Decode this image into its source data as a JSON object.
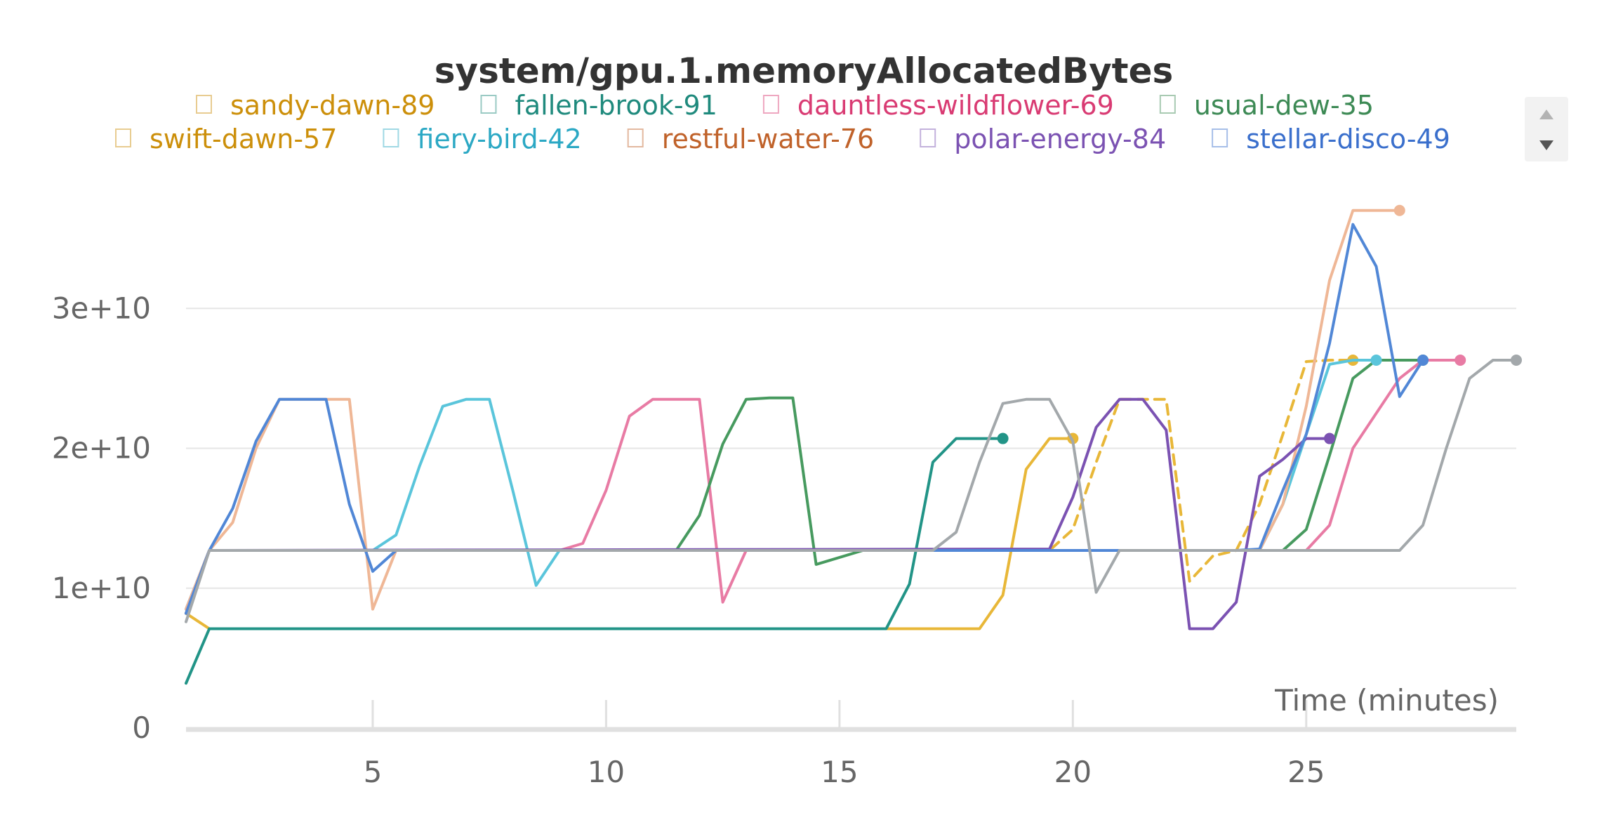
{
  "chart_data": {
    "type": "line",
    "title": "system/gpu.1.memoryAllocatedBytes",
    "xlabel": "Time (minutes)",
    "ylabel": "",
    "xlim": [
      1,
      29.5
    ],
    "ylim": [
      0,
      40000000000.0
    ],
    "x_ticks": [
      5,
      10,
      15,
      20,
      25
    ],
    "x_tick_labels": [
      "5",
      "10",
      "15",
      "20",
      "25"
    ],
    "y_ticks": [
      0,
      10000000000.0,
      20000000000.0,
      30000000000.0
    ],
    "y_tick_labels": [
      "0",
      "1e+10",
      "2e+10",
      "3e+10"
    ],
    "grid": true,
    "legend_position": "top",
    "series": [
      {
        "name": "sandy-dawn-89",
        "color": "#e8b738",
        "dashed": false,
        "x": [
          1,
          1.5,
          16,
          17,
          18,
          18.5,
          19,
          19.5,
          20
        ],
        "y": [
          8200000000.0,
          7100000000.0,
          7100000000.0,
          7100000000.0,
          7100000000.0,
          9500000000.0,
          18500000000.0,
          20700000000.0,
          20700000000.0
        ]
      },
      {
        "name": "fallen-brook-91",
        "color": "#229487",
        "dashed": false,
        "x": [
          1,
          1.5,
          16,
          16.5,
          17,
          17.5,
          18,
          18.5
        ],
        "y": [
          3200000000.0,
          7100000000.0,
          7100000000.0,
          10300000000.0,
          19000000000.0,
          20700000000.0,
          20700000000.0,
          20700000000.0
        ]
      },
      {
        "name": "dauntless-wildflower-69",
        "color": "#e87ba4",
        "dashed": false,
        "x": [
          1,
          1.5,
          9,
          9.5,
          10,
          10.5,
          11,
          11.5,
          12,
          12.5,
          13,
          25,
          25.5,
          26,
          26.5,
          27,
          27.5,
          28,
          28.3
        ],
        "y": [
          8500000000.0,
          12700000000.0,
          12700000000.0,
          13200000000.0,
          17000000000.0,
          22300000000.0,
          23500000000.0,
          23500000000.0,
          23500000000.0,
          9000000000.0,
          12700000000.0,
          12700000000.0,
          14500000000.0,
          20000000000.0,
          22500000000.0,
          25000000000.0,
          26300000000.0,
          26300000000.0,
          26300000000.0
        ]
      },
      {
        "name": "usual-dew-35",
        "color": "#479a5f",
        "dashed": false,
        "x": [
          1,
          1.5,
          11.5,
          12,
          12.5,
          13,
          13.5,
          14,
          14.5,
          15.5,
          24.5,
          25,
          25.5,
          26,
          26.5,
          27,
          27.5
        ],
        "y": [
          8200000000.0,
          12700000000.0,
          12700000000.0,
          15200000000.0,
          20300000000.0,
          23500000000.0,
          23600000000.0,
          23600000000.0,
          11700000000.0,
          12700000000.0,
          12700000000.0,
          14200000000.0,
          19500000000.0,
          25000000000.0,
          26300000000.0,
          26300000000.0,
          26300000000.0
        ]
      },
      {
        "name": "swift-dawn-57",
        "color": "#e8b738",
        "dashed": true,
        "x": [
          1,
          1.5,
          19.5,
          20,
          20.5,
          21,
          21.5,
          22,
          22.5,
          23,
          23.5,
          24,
          24.5,
          25,
          25.5,
          26
        ],
        "y": [
          8200000000.0,
          12700000000.0,
          12700000000.0,
          14200000000.0,
          19000000000.0,
          23500000000.0,
          23500000000.0,
          23500000000.0,
          10500000000.0,
          12300000000.0,
          12700000000.0,
          16000000000.0,
          21000000000.0,
          26200000000.0,
          26300000000.0,
          26300000000.0
        ]
      },
      {
        "name": "fiery-bird-42",
        "color": "#5ac5db",
        "dashed": false,
        "x": [
          1,
          1.5,
          5,
          5.5,
          6,
          6.5,
          7,
          7.5,
          8,
          8.5,
          9,
          24,
          24.5,
          25,
          25.5,
          26,
          26.5
        ],
        "y": [
          8500000000.0,
          12700000000.0,
          12700000000.0,
          13800000000.0,
          18700000000.0,
          23000000000.0,
          23500000000.0,
          23500000000.0,
          17000000000.0,
          10200000000.0,
          12700000000.0,
          12700000000.0,
          16000000000.0,
          21000000000.0,
          26000000000.0,
          26300000000.0,
          26300000000.0
        ]
      },
      {
        "name": "restful-water-76",
        "color": "#efb796",
        "dashed": false,
        "x": [
          1,
          1.5,
          2,
          2.5,
          3,
          3.5,
          4,
          4.5,
          5,
          5.5,
          24,
          24.5,
          25,
          25.5,
          26,
          26.5,
          27
        ],
        "y": [
          8500000000.0,
          12700000000.0,
          14700000000.0,
          20000000000.0,
          23500000000.0,
          23500000000.0,
          23500000000.0,
          23500000000.0,
          8500000000.0,
          12700000000.0,
          12700000000.0,
          16000000000.0,
          23000000000.0,
          32000000000.0,
          37000000000.0,
          37000000000.0,
          37000000000.0
        ]
      },
      {
        "name": "polar-energy-84",
        "color": "#7b52b2",
        "dashed": false,
        "x": [
          1,
          1.5,
          19.5,
          20,
          20.5,
          21,
          21.5,
          22,
          22.5,
          23,
          23.5,
          24,
          24.5,
          25,
          25.5
        ],
        "y": [
          8200000000.0,
          12700000000.0,
          12800000000.0,
          16500000000.0,
          21500000000.0,
          23500000000.0,
          23500000000.0,
          21300000000.0,
          7100000000.0,
          7100000000.0,
          9000000000.0,
          18000000000.0,
          19200000000.0,
          20700000000.0,
          20700000000.0
        ]
      },
      {
        "name": "stellar-disco-49",
        "color": "#5187d6",
        "dashed": false,
        "x": [
          1,
          1.5,
          2,
          2.5,
          3,
          3.5,
          4,
          4.5,
          5,
          5.5,
          21,
          23.5,
          24,
          24.5,
          25,
          25.5,
          26,
          26.5,
          27,
          27.5
        ],
        "y": [
          8200000000.0,
          12700000000.0,
          15700000000.0,
          20500000000.0,
          23500000000.0,
          23500000000.0,
          23500000000.0,
          16000000000.0,
          11200000000.0,
          12700000000.0,
          12700000000.0,
          12700000000.0,
          12800000000.0,
          17000000000.0,
          21000000000.0,
          27500000000.0,
          36000000000.0,
          33000000000.0,
          23700000000.0,
          26300000000.0
        ]
      },
      {
        "name": "",
        "color": "#a3a8ab",
        "dashed": false,
        "x": [
          1,
          1.5,
          17,
          17.5,
          18,
          18.5,
          19,
          19.5,
          20,
          20.5,
          21,
          27,
          27.5,
          28,
          28.5,
          29,
          29.5
        ],
        "y": [
          7600000000.0,
          12700000000.0,
          12700000000.0,
          14000000000.0,
          19000000000.0,
          23200000000.0,
          23500000000.0,
          23500000000.0,
          20500000000.0,
          9700000000.0,
          12700000000.0,
          12700000000.0,
          14500000000.0,
          20000000000.0,
          25000000000.0,
          26300000000.0,
          26300000000.0
        ]
      }
    ]
  },
  "legend": {
    "rows": [
      [
        {
          "label": "sandy-dawn-89",
          "color": "#cc8f0a"
        },
        {
          "label": "fallen-brook-91",
          "color": "#1f8a7d"
        },
        {
          "label": "dauntless-wildflower-69",
          "color": "#d93b73"
        },
        {
          "label": "usual-dew-35",
          "color": "#3d8a55"
        }
      ],
      [
        {
          "label": "swift-dawn-57",
          "color": "#cc8f0a"
        },
        {
          "label": "fiery-bird-42",
          "color": "#2ba8c4"
        },
        {
          "label": "restful-water-76",
          "color": "#c0622a"
        },
        {
          "label": "polar-energy-84",
          "color": "#7b52b2"
        },
        {
          "label": "stellar-disco-49",
          "color": "#3a6fcc"
        }
      ]
    ],
    "scroll_up_icon": "triangle-up-icon",
    "scroll_down_icon": "triangle-down-icon"
  }
}
